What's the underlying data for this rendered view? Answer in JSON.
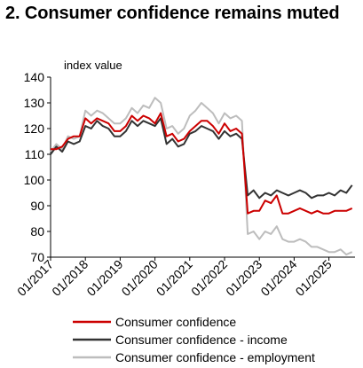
{
  "chart_data": {
    "type": "line",
    "title": "2. Consumer confidence remains muted",
    "ylabel": "index value",
    "xlabel": "",
    "ylim": [
      70,
      140
    ],
    "yticks": [
      70,
      80,
      90,
      100,
      110,
      120,
      130,
      140
    ],
    "xlim": [
      "2017-01",
      "2025-10"
    ],
    "xticks": [
      "01/2017",
      "01/2018",
      "01/2019",
      "01/2020",
      "01/2021",
      "01/2022",
      "01/2023",
      "01/2024",
      "01/2025"
    ],
    "grid": false,
    "legend_position": "bottom",
    "series": [
      {
        "name": "Consumer confidence",
        "color": "#cc0000",
        "points": [
          [
            "2017-01",
            112
          ],
          [
            "2017-03",
            112
          ],
          [
            "2017-05",
            113
          ],
          [
            "2017-07",
            116
          ],
          [
            "2017-09",
            117
          ],
          [
            "2017-11",
            117
          ],
          [
            "2018-01",
            124
          ],
          [
            "2018-03",
            122
          ],
          [
            "2018-05",
            124
          ],
          [
            "2018-07",
            123
          ],
          [
            "2018-09",
            122
          ],
          [
            "2018-11",
            119
          ],
          [
            "2019-01",
            119
          ],
          [
            "2019-03",
            121
          ],
          [
            "2019-05",
            125
          ],
          [
            "2019-07",
            123
          ],
          [
            "2019-09",
            125
          ],
          [
            "2019-11",
            124
          ],
          [
            "2020-01",
            122
          ],
          [
            "2020-03",
            126
          ],
          [
            "2020-05",
            117
          ],
          [
            "2020-07",
            118
          ],
          [
            "2020-09",
            115
          ],
          [
            "2020-11",
            116
          ],
          [
            "2021-01",
            119
          ],
          [
            "2021-03",
            121
          ],
          [
            "2021-05",
            123
          ],
          [
            "2021-07",
            123
          ],
          [
            "2021-09",
            121
          ],
          [
            "2021-11",
            118
          ],
          [
            "2022-01",
            122
          ],
          [
            "2022-03",
            119
          ],
          [
            "2022-05",
            120
          ],
          [
            "2022-07",
            118
          ],
          [
            "2022-09",
            87
          ],
          [
            "2022-11",
            88
          ],
          [
            "2023-01",
            88
          ],
          [
            "2023-03",
            92
          ],
          [
            "2023-05",
            91
          ],
          [
            "2023-07",
            94
          ],
          [
            "2023-09",
            87
          ],
          [
            "2023-11",
            87
          ],
          [
            "2024-01",
            88
          ],
          [
            "2024-03",
            89
          ],
          [
            "2024-05",
            88
          ],
          [
            "2024-07",
            87
          ],
          [
            "2024-09",
            88
          ],
          [
            "2024-11",
            87
          ],
          [
            "2025-01",
            87
          ],
          [
            "2025-03",
            88
          ],
          [
            "2025-05",
            88
          ],
          [
            "2025-07",
            88
          ],
          [
            "2025-09",
            89
          ]
        ]
      },
      {
        "name": "Consumer confidence - income",
        "color": "#333333",
        "points": [
          [
            "2017-01",
            110
          ],
          [
            "2017-03",
            113
          ],
          [
            "2017-05",
            111
          ],
          [
            "2017-07",
            115
          ],
          [
            "2017-09",
            114
          ],
          [
            "2017-11",
            115
          ],
          [
            "2018-01",
            121
          ],
          [
            "2018-03",
            120
          ],
          [
            "2018-05",
            123
          ],
          [
            "2018-07",
            121
          ],
          [
            "2018-09",
            120
          ],
          [
            "2018-11",
            117
          ],
          [
            "2019-01",
            117
          ],
          [
            "2019-03",
            119
          ],
          [
            "2019-05",
            123
          ],
          [
            "2019-07",
            121
          ],
          [
            "2019-09",
            123
          ],
          [
            "2019-11",
            122
          ],
          [
            "2020-01",
            121
          ],
          [
            "2020-03",
            124
          ],
          [
            "2020-05",
            114
          ],
          [
            "2020-07",
            116
          ],
          [
            "2020-09",
            113
          ],
          [
            "2020-11",
            114
          ],
          [
            "2021-01",
            118
          ],
          [
            "2021-03",
            119
          ],
          [
            "2021-05",
            121
          ],
          [
            "2021-07",
            120
          ],
          [
            "2021-09",
            119
          ],
          [
            "2021-11",
            116
          ],
          [
            "2022-01",
            119
          ],
          [
            "2022-03",
            117
          ],
          [
            "2022-05",
            118
          ],
          [
            "2022-07",
            116
          ],
          [
            "2022-09",
            94
          ],
          [
            "2022-11",
            96
          ],
          [
            "2023-01",
            93
          ],
          [
            "2023-03",
            95
          ],
          [
            "2023-05",
            94
          ],
          [
            "2023-07",
            96
          ],
          [
            "2023-09",
            95
          ],
          [
            "2023-11",
            94
          ],
          [
            "2024-01",
            95
          ],
          [
            "2024-03",
            96
          ],
          [
            "2024-05",
            95
          ],
          [
            "2024-07",
            93
          ],
          [
            "2024-09",
            94
          ],
          [
            "2024-11",
            94
          ],
          [
            "2025-01",
            95
          ],
          [
            "2025-03",
            94
          ],
          [
            "2025-05",
            96
          ],
          [
            "2025-07",
            95
          ],
          [
            "2025-09",
            98
          ]
        ]
      },
      {
        "name": "Consumer confidence - employment",
        "color": "#bdbdbd",
        "points": [
          [
            "2017-01",
            111
          ],
          [
            "2017-03",
            114
          ],
          [
            "2017-05",
            112
          ],
          [
            "2017-07",
            117
          ],
          [
            "2017-09",
            116
          ],
          [
            "2017-11",
            117
          ],
          [
            "2018-01",
            127
          ],
          [
            "2018-03",
            125
          ],
          [
            "2018-05",
            127
          ],
          [
            "2018-07",
            126
          ],
          [
            "2018-09",
            124
          ],
          [
            "2018-11",
            122
          ],
          [
            "2019-01",
            122
          ],
          [
            "2019-03",
            124
          ],
          [
            "2019-05",
            128
          ],
          [
            "2019-07",
            126
          ],
          [
            "2019-09",
            129
          ],
          [
            "2019-11",
            128
          ],
          [
            "2020-01",
            132
          ],
          [
            "2020-03",
            130
          ],
          [
            "2020-05",
            120
          ],
          [
            "2020-07",
            121
          ],
          [
            "2020-09",
            118
          ],
          [
            "2020-11",
            120
          ],
          [
            "2021-01",
            125
          ],
          [
            "2021-03",
            127
          ],
          [
            "2021-05",
            130
          ],
          [
            "2021-07",
            128
          ],
          [
            "2021-09",
            126
          ],
          [
            "2021-11",
            122
          ],
          [
            "2022-01",
            126
          ],
          [
            "2022-03",
            124
          ],
          [
            "2022-05",
            125
          ],
          [
            "2022-07",
            123
          ],
          [
            "2022-09",
            79
          ],
          [
            "2022-11",
            80
          ],
          [
            "2023-01",
            77
          ],
          [
            "2023-03",
            80
          ],
          [
            "2023-05",
            79
          ],
          [
            "2023-07",
            82
          ],
          [
            "2023-09",
            77
          ],
          [
            "2023-11",
            76
          ],
          [
            "2024-01",
            76
          ],
          [
            "2024-03",
            77
          ],
          [
            "2024-05",
            76
          ],
          [
            "2024-07",
            74
          ],
          [
            "2024-09",
            74
          ],
          [
            "2024-11",
            73
          ],
          [
            "2025-01",
            72
          ],
          [
            "2025-03",
            72
          ],
          [
            "2025-05",
            73
          ],
          [
            "2025-07",
            71
          ],
          [
            "2025-09",
            72
          ]
        ]
      }
    ]
  }
}
